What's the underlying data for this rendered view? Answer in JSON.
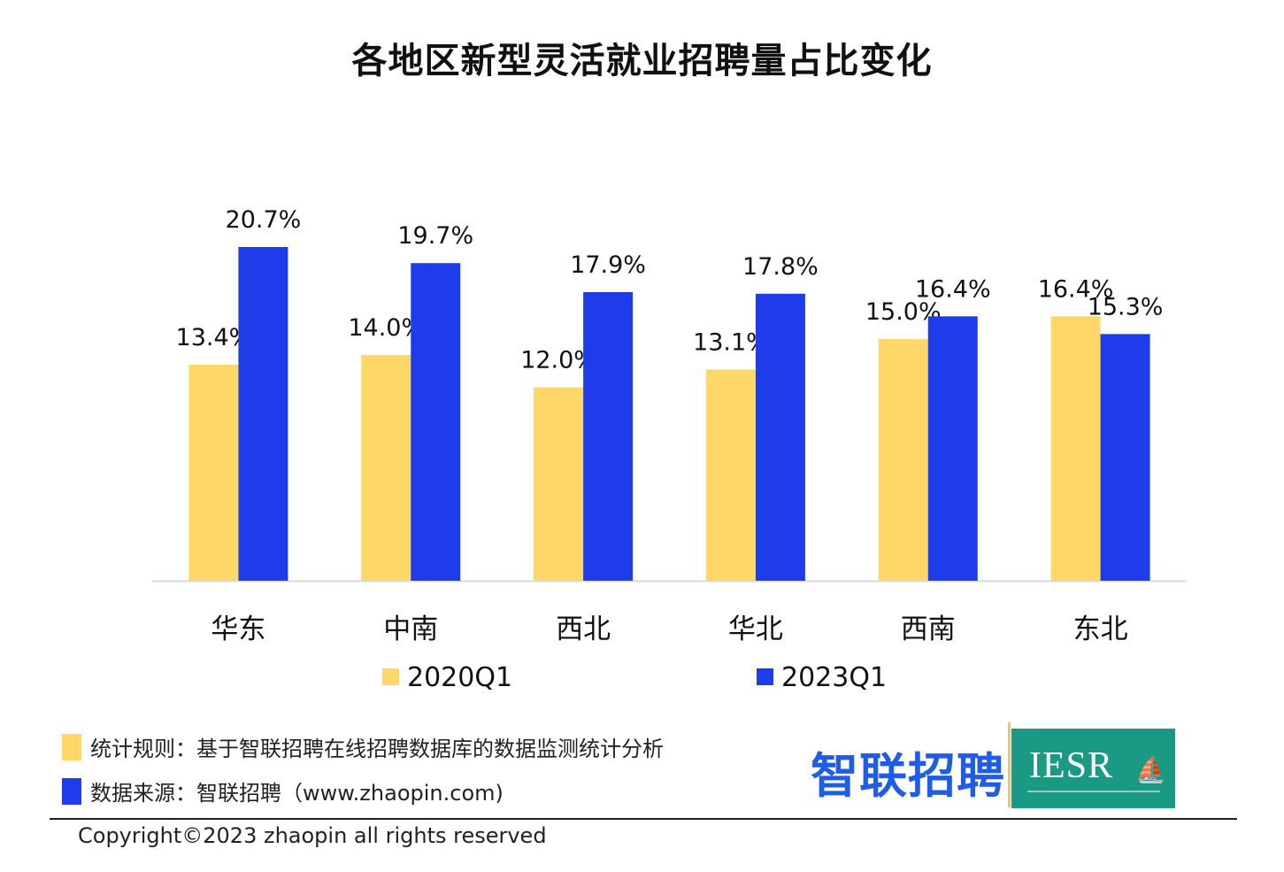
{
  "title": "各地区新型灵活就业招聘量占比变化",
  "chart_data": {
    "type": "bar",
    "title": "各地区新型灵活就业招聘量占比变化",
    "categories": [
      "华东",
      "中南",
      "西北",
      "华北",
      "西南",
      "东北"
    ],
    "series": [
      {
        "name": "2020Q1",
        "color": "#FDD868",
        "values": [
          13.4,
          14.0,
          12.0,
          13.1,
          15.0,
          16.4
        ],
        "labels": [
          "13.4%",
          "14.0%",
          "12.0%",
          "13.1%",
          "15.0%",
          "16.4%"
        ]
      },
      {
        "name": "2023Q1",
        "color": "#1F3CEB",
        "values": [
          20.7,
          19.7,
          17.9,
          17.8,
          16.4,
          15.3
        ],
        "labels": [
          "20.7%",
          "19.7%",
          "17.9%",
          "17.8%",
          "16.4%",
          "15.3%"
        ]
      }
    ],
    "ylim": [
      0,
      20.7
    ],
    "grid": false,
    "legend": "bottom"
  },
  "notes": {
    "rule": "统计规则：基于智联招聘在线招聘数据库的数据监测统计分析",
    "rule_color": "#FDD868",
    "source": "数据来源：智联招聘（www.zhaopin.com)",
    "source_color": "#1F3CEB"
  },
  "logo": {
    "brand": "智联招聘",
    "partner": "IESR"
  },
  "copyright": "Copyright©2023 zhaopin all rights reserved"
}
